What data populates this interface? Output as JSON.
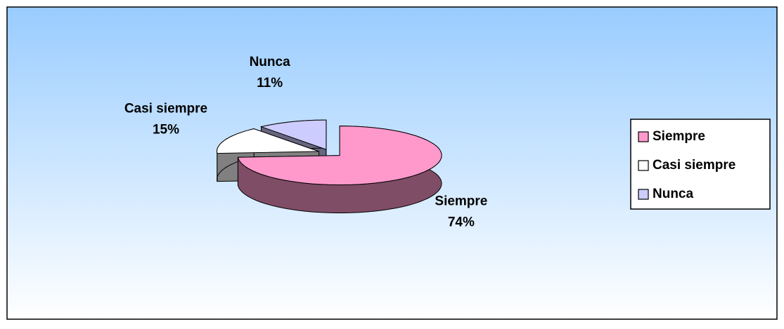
{
  "chart_data": {
    "type": "pie3d",
    "categories": [
      "Siempre",
      "Casi siempre",
      "Nunca"
    ],
    "values": [
      74,
      15,
      11
    ],
    "value_labels": [
      "74%",
      "15%",
      "11%"
    ],
    "colors": [
      "#FF99CC",
      "#FFFFFF",
      "#CCCCFF"
    ],
    "legend": "right"
  }
}
